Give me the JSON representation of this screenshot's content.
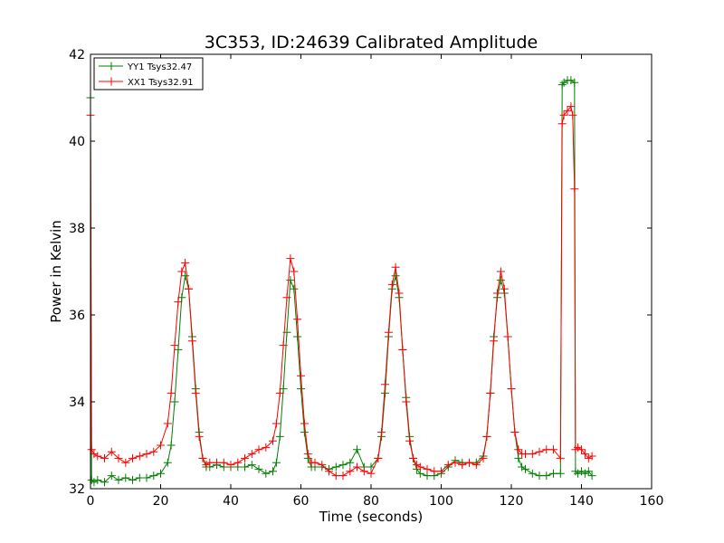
{
  "chart_data": {
    "type": "line",
    "title": "3C353, ID:24639 Calibrated Amplitude",
    "xlabel": "Time (seconds)",
    "ylabel": "Power in Kelvin",
    "xlim": [
      0,
      160
    ],
    "ylim": [
      32,
      42
    ],
    "xticks": [
      "0",
      "20",
      "40",
      "60",
      "80",
      "100",
      "120",
      "140",
      "160"
    ],
    "yticks": [
      "32",
      "34",
      "36",
      "38",
      "40",
      "42"
    ],
    "grid": false,
    "legend_position": "top-left",
    "markers": "plus",
    "series": [
      {
        "name": "YY1 Tsys32.47",
        "color": "#007f00",
        "x": [
          0,
          0.3,
          1,
          2,
          4,
          6,
          8,
          10,
          12,
          14,
          16,
          18,
          20,
          22,
          23,
          24,
          25,
          26,
          27,
          28,
          29,
          30,
          31,
          32,
          33,
          34,
          36,
          38,
          40,
          42,
          44,
          46,
          48,
          50,
          52,
          53,
          54,
          55,
          56,
          57,
          58,
          59,
          60,
          61,
          62,
          63,
          64,
          66,
          68,
          70,
          72,
          74,
          76,
          78,
          80,
          82,
          83,
          84,
          85,
          86,
          87,
          88,
          89,
          90,
          91,
          92,
          93,
          94,
          96,
          98,
          100,
          102,
          104,
          106,
          108,
          110,
          112,
          113,
          114,
          115,
          116,
          117,
          118,
          119,
          120,
          121,
          122,
          123,
          124,
          126,
          128,
          130,
          132,
          134,
          134.5,
          135,
          136,
          137,
          138,
          138.3,
          139,
          140,
          141,
          142,
          143
        ],
        "y": [
          41.0,
          32.2,
          32.15,
          32.2,
          32.15,
          32.3,
          32.2,
          32.25,
          32.2,
          32.25,
          32.25,
          32.3,
          32.35,
          32.6,
          33.0,
          34.0,
          35.2,
          36.4,
          36.9,
          36.6,
          35.5,
          34.3,
          33.3,
          32.7,
          32.5,
          32.5,
          32.55,
          32.5,
          32.5,
          32.5,
          32.5,
          32.55,
          32.45,
          32.35,
          32.4,
          32.6,
          33.2,
          34.3,
          35.6,
          36.8,
          36.6,
          35.5,
          34.3,
          33.3,
          32.7,
          32.5,
          32.5,
          32.5,
          32.45,
          32.5,
          32.55,
          32.6,
          32.9,
          32.5,
          32.5,
          32.7,
          33.2,
          34.2,
          35.5,
          36.6,
          36.9,
          36.4,
          35.2,
          34.1,
          33.2,
          32.7,
          32.45,
          32.35,
          32.3,
          32.3,
          32.35,
          32.5,
          32.65,
          32.6,
          32.6,
          32.6,
          32.75,
          33.2,
          34.2,
          35.5,
          36.4,
          36.8,
          36.5,
          35.5,
          34.3,
          33.3,
          32.7,
          32.5,
          32.45,
          32.35,
          32.3,
          32.3,
          32.35,
          32.35,
          41.3,
          41.35,
          41.4,
          41.4,
          41.35,
          32.4,
          32.35,
          32.4,
          32.35,
          32.4,
          32.3
        ]
      },
      {
        "name": "XX1 Tsys32.91",
        "color": "#ff0000",
        "x": [
          0,
          0.3,
          1,
          2,
          4,
          6,
          8,
          10,
          12,
          14,
          16,
          18,
          20,
          22,
          23,
          24,
          25,
          26,
          27,
          28,
          29,
          30,
          31,
          32,
          33,
          34,
          36,
          38,
          40,
          42,
          44,
          46,
          48,
          50,
          52,
          53,
          54,
          55,
          56,
          57,
          58,
          59,
          60,
          61,
          62,
          63,
          64,
          66,
          68,
          70,
          72,
          74,
          76,
          78,
          80,
          82,
          83,
          84,
          85,
          86,
          87,
          88,
          89,
          90,
          91,
          92,
          93,
          94,
          96,
          98,
          100,
          102,
          104,
          106,
          108,
          110,
          112,
          113,
          114,
          115,
          116,
          117,
          118,
          119,
          120,
          121,
          122,
          123,
          124,
          126,
          128,
          130,
          132,
          134,
          134.5,
          135,
          136,
          137,
          137.5,
          138,
          138.3,
          139,
          140,
          141,
          142,
          143
        ],
        "y": [
          40.6,
          32.9,
          32.8,
          32.75,
          32.7,
          32.85,
          32.7,
          32.6,
          32.7,
          32.75,
          32.8,
          32.85,
          33.0,
          33.5,
          34.2,
          35.3,
          36.3,
          37.0,
          37.2,
          36.6,
          35.4,
          34.2,
          33.2,
          32.7,
          32.55,
          32.6,
          32.6,
          32.6,
          32.55,
          32.6,
          32.7,
          32.8,
          32.9,
          32.95,
          33.1,
          33.5,
          34.2,
          35.3,
          36.4,
          37.3,
          37.0,
          35.9,
          34.6,
          33.5,
          32.8,
          32.6,
          32.6,
          32.55,
          32.4,
          32.3,
          32.3,
          32.4,
          32.5,
          32.4,
          32.35,
          32.7,
          33.3,
          34.4,
          35.6,
          36.7,
          37.1,
          36.5,
          35.2,
          34.0,
          33.1,
          32.7,
          32.55,
          32.5,
          32.45,
          32.4,
          32.4,
          32.55,
          32.6,
          32.55,
          32.6,
          32.55,
          32.7,
          33.2,
          34.2,
          35.4,
          36.5,
          37.0,
          36.6,
          35.5,
          34.3,
          33.3,
          32.9,
          32.8,
          32.8,
          32.8,
          32.85,
          32.9,
          32.9,
          32.7,
          40.4,
          40.6,
          40.7,
          40.8,
          40.6,
          38.9,
          32.9,
          32.95,
          32.9,
          32.8,
          32.7,
          32.75
        ]
      }
    ]
  }
}
